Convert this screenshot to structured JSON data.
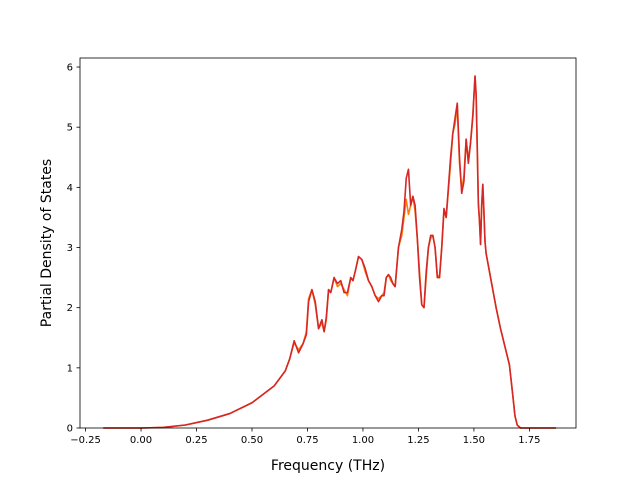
{
  "chart_data": {
    "type": "line",
    "title": "",
    "xlabel": "Frequency (THz)",
    "ylabel": "Partial Density of States",
    "xlim": [
      -0.275,
      1.96
    ],
    "ylim": [
      0,
      6.15
    ],
    "xticks": [
      -0.25,
      0.0,
      0.25,
      0.5,
      0.75,
      1.0,
      1.25,
      1.5,
      1.75
    ],
    "xtick_labels": [
      "−0.25",
      "0.00",
      "0.25",
      "0.50",
      "0.75",
      "1.00",
      "1.25",
      "1.50",
      "1.75"
    ],
    "yticks": [
      0,
      1,
      2,
      3,
      4,
      5,
      6
    ],
    "ytick_labels": [
      "0",
      "1",
      "2",
      "3",
      "4",
      "5",
      "6"
    ],
    "grid": false,
    "legend": "none",
    "series": [
      {
        "color": "#ff7f0e",
        "x": [
          -0.17,
          0.0,
          0.1,
          0.2,
          0.3,
          0.4,
          0.5,
          0.6,
          0.65,
          0.67,
          0.69,
          0.71,
          0.73,
          0.745,
          0.755,
          0.77,
          0.785,
          0.8,
          0.815,
          0.825,
          0.835,
          0.845,
          0.855,
          0.87,
          0.885,
          0.9,
          0.915,
          0.93,
          0.945,
          0.955,
          0.965,
          0.98,
          0.995,
          1.01,
          1.025,
          1.04,
          1.055,
          1.07,
          1.085,
          1.095,
          1.105,
          1.115,
          1.125,
          1.135,
          1.145,
          1.16,
          1.175,
          1.185,
          1.195,
          1.205,
          1.215,
          1.225,
          1.235,
          1.245,
          1.255,
          1.265,
          1.275,
          1.285,
          1.295,
          1.305,
          1.315,
          1.325,
          1.335,
          1.345,
          1.355,
          1.365,
          1.375,
          1.385,
          1.395,
          1.405,
          1.415,
          1.425,
          1.435,
          1.445,
          1.455,
          1.465,
          1.475,
          1.485,
          1.495,
          1.505,
          1.51,
          1.515,
          1.52,
          1.525,
          1.53,
          1.535,
          1.54,
          1.545,
          1.55,
          1.555,
          1.56,
          1.57,
          1.585,
          1.6,
          1.62,
          1.64,
          1.66,
          1.675,
          1.685,
          1.695,
          1.71,
          1.75,
          1.87
        ],
        "y": [
          0,
          0,
          0.01,
          0.05,
          0.13,
          0.24,
          0.42,
          0.7,
          0.95,
          1.15,
          1.42,
          1.3,
          1.4,
          1.6,
          2.15,
          2.3,
          2.05,
          1.65,
          1.75,
          1.6,
          1.8,
          2.3,
          2.25,
          2.5,
          2.35,
          2.4,
          2.3,
          2.2,
          2.5,
          2.45,
          2.6,
          2.85,
          2.8,
          2.6,
          2.45,
          2.35,
          2.2,
          2.15,
          2.2,
          2.25,
          2.5,
          2.55,
          2.45,
          2.4,
          2.35,
          3.0,
          3.2,
          3.5,
          3.8,
          3.55,
          3.7,
          3.85,
          3.6,
          3.15,
          2.6,
          2.05,
          2.0,
          2.5,
          3.0,
          3.15,
          3.2,
          3.0,
          2.55,
          2.5,
          3.0,
          3.6,
          3.5,
          3.95,
          4.4,
          4.9,
          5.05,
          5.35,
          4.4,
          3.95,
          4.2,
          4.8,
          4.45,
          4.75,
          5.15,
          5.85,
          5.5,
          4.6,
          3.7,
          3.45,
          3.05,
          3.7,
          4.05,
          3.6,
          3.1,
          2.9,
          2.8,
          2.6,
          2.3,
          2.0,
          1.65,
          1.35,
          1.05,
          0.55,
          0.2,
          0.05,
          0,
          0,
          0
        ]
      },
      {
        "color": "#d62728",
        "x": [
          -0.17,
          0.0,
          0.1,
          0.2,
          0.3,
          0.4,
          0.5,
          0.6,
          0.65,
          0.67,
          0.69,
          0.71,
          0.73,
          0.745,
          0.755,
          0.77,
          0.785,
          0.8,
          0.815,
          0.825,
          0.835,
          0.845,
          0.855,
          0.87,
          0.885,
          0.9,
          0.915,
          0.93,
          0.945,
          0.955,
          0.965,
          0.98,
          0.995,
          1.01,
          1.025,
          1.04,
          1.055,
          1.07,
          1.085,
          1.095,
          1.105,
          1.115,
          1.125,
          1.135,
          1.145,
          1.16,
          1.175,
          1.185,
          1.195,
          1.205,
          1.215,
          1.225,
          1.235,
          1.245,
          1.255,
          1.265,
          1.275,
          1.285,
          1.295,
          1.305,
          1.315,
          1.325,
          1.335,
          1.345,
          1.355,
          1.365,
          1.375,
          1.385,
          1.395,
          1.405,
          1.415,
          1.425,
          1.435,
          1.445,
          1.455,
          1.465,
          1.475,
          1.485,
          1.495,
          1.505,
          1.51,
          1.515,
          1.52,
          1.525,
          1.53,
          1.535,
          1.54,
          1.545,
          1.55,
          1.555,
          1.56,
          1.57,
          1.585,
          1.6,
          1.62,
          1.64,
          1.66,
          1.675,
          1.685,
          1.695,
          1.71,
          1.75,
          1.87
        ],
        "y": [
          0,
          0,
          0.01,
          0.05,
          0.13,
          0.24,
          0.42,
          0.7,
          0.95,
          1.15,
          1.45,
          1.25,
          1.4,
          1.55,
          2.1,
          2.3,
          2.1,
          1.65,
          1.8,
          1.6,
          1.85,
          2.3,
          2.25,
          2.5,
          2.4,
          2.45,
          2.25,
          2.25,
          2.5,
          2.45,
          2.6,
          2.85,
          2.8,
          2.65,
          2.45,
          2.35,
          2.2,
          2.1,
          2.2,
          2.2,
          2.5,
          2.55,
          2.5,
          2.4,
          2.35,
          3.0,
          3.3,
          3.6,
          4.15,
          4.3,
          3.7,
          3.85,
          3.7,
          3.15,
          2.5,
          2.05,
          2.0,
          2.6,
          3.0,
          3.2,
          3.2,
          3.0,
          2.5,
          2.5,
          3.0,
          3.65,
          3.5,
          4.0,
          4.5,
          4.9,
          5.15,
          5.4,
          4.5,
          3.9,
          4.1,
          4.8,
          4.4,
          4.75,
          5.2,
          5.85,
          5.55,
          4.7,
          3.75,
          3.45,
          3.05,
          3.7,
          4.05,
          3.6,
          3.1,
          2.9,
          2.8,
          2.6,
          2.3,
          2.0,
          1.65,
          1.35,
          1.05,
          0.55,
          0.2,
          0.05,
          0,
          0,
          0
        ]
      }
    ]
  }
}
